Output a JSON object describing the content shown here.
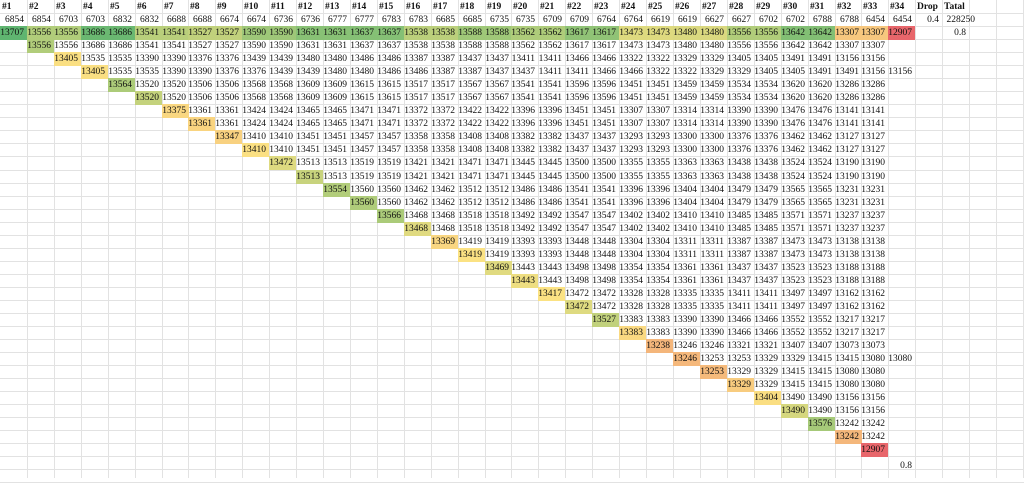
{
  "col_labels": [
    "#1",
    "#2",
    "#3",
    "#4",
    "#5",
    "#6",
    "#7",
    "#8",
    "#9",
    "#10",
    "#11",
    "#12",
    "#13",
    "#14",
    "#15",
    "#16",
    "#17",
    "#18",
    "#19",
    "#20",
    "#21",
    "#22",
    "#23",
    "#24",
    "#25",
    "#26",
    "#27",
    "#28",
    "#29",
    "#30",
    "#31",
    "#32",
    "#33",
    "#34",
    "Drop",
    "Tatal"
  ],
  "base_values": [
    6854,
    6854,
    6703,
    6703,
    6832,
    6832,
    6688,
    6688,
    6674,
    6674,
    6736,
    6736,
    6777,
    6777,
    6783,
    6783,
    6685,
    6685,
    6735,
    6735,
    6709,
    6709,
    6764,
    6764,
    6619,
    6619,
    6627,
    6627,
    6702,
    6702,
    6788,
    6788,
    6454,
    6454
  ],
  "drop_value": "0.4",
  "total_value": "228250",
  "side_value": "0.8",
  "footer_value": "0.8",
  "diagonal_values": [
    13707,
    13556,
    13405,
    13405,
    13564,
    13520,
    13375,
    13361,
    13347,
    13410,
    13472,
    13513,
    13554,
    13560,
    13566,
    13468,
    13369,
    13419,
    13469,
    13443,
    13417,
    13472,
    13527,
    13383,
    13238,
    13246,
    13253,
    13329,
    13404,
    13490,
    13576,
    13242,
    12907
  ],
  "heat_colors": {
    "low": "#e8666b",
    "mid": "#fbe283",
    "high": "#5fb570"
  },
  "rows": [
    [
      "13707",
      "13556",
      "13556",
      "13686",
      "13686",
      "13541",
      "13541",
      "13527",
      "13527",
      "13590",
      "13590",
      "13631",
      "13631",
      "13637",
      "13637",
      "13538",
      "13538",
      "13588",
      "13588",
      "13562",
      "13562",
      "13617",
      "13617",
      "13473",
      "13473",
      "13480",
      "13480",
      "13556",
      "13556",
      "13642",
      "13642",
      "13307",
      "13307",
      "12907"
    ],
    [
      "13556",
      "13556",
      "13686",
      "13686",
      "13541",
      "13541",
      "13527",
      "13527",
      "13590",
      "13590",
      "13631",
      "13631",
      "13637",
      "13637",
      "13538",
      "13538",
      "13588",
      "13588",
      "13562",
      "13562",
      "13617",
      "13617",
      "13473",
      "13473",
      "13480",
      "13480",
      "13556",
      "13556",
      "13642",
      "13642",
      "13307",
      "13307"
    ],
    [
      "13405",
      "13535",
      "13535",
      "13390",
      "13390",
      "13376",
      "13376",
      "13439",
      "13439",
      "13480",
      "13480",
      "13486",
      "13486",
      "13387",
      "13387",
      "13437",
      "13437",
      "13411",
      "13411",
      "13466",
      "13466",
      "13322",
      "13322",
      "13329",
      "13329",
      "13405",
      "13405",
      "13491",
      "13491",
      "13156",
      "13156"
    ],
    [
      "13405",
      "13535",
      "13535",
      "13390",
      "13390",
      "13376",
      "13376",
      "13439",
      "13439",
      "13480",
      "13480",
      "13486",
      "13486",
      "13387",
      "13387",
      "13437",
      "13437",
      "13411",
      "13411",
      "13466",
      "13466",
      "13322",
      "13322",
      "13329",
      "13329",
      "13405",
      "13405",
      "13491",
      "13491",
      "13156",
      "13156"
    ],
    [
      "13564",
      "13520",
      "13520",
      "13506",
      "13506",
      "13568",
      "13568",
      "13609",
      "13609",
      "13615",
      "13615",
      "13517",
      "13517",
      "13567",
      "13567",
      "13541",
      "13541",
      "13596",
      "13596",
      "13451",
      "13451",
      "13459",
      "13459",
      "13534",
      "13534",
      "13620",
      "13620",
      "13286",
      "13286"
    ],
    [
      "13520",
      "13520",
      "13506",
      "13506",
      "13568",
      "13568",
      "13609",
      "13609",
      "13615",
      "13615",
      "13517",
      "13517",
      "13567",
      "13567",
      "13541",
      "13541",
      "13596",
      "13596",
      "13451",
      "13451",
      "13459",
      "13459",
      "13534",
      "13534",
      "13620",
      "13620",
      "13286",
      "13286"
    ],
    [
      "13375",
      "13361",
      "13361",
      "13424",
      "13424",
      "13465",
      "13465",
      "13471",
      "13471",
      "13372",
      "13372",
      "13422",
      "13422",
      "13396",
      "13396",
      "13451",
      "13451",
      "13307",
      "13307",
      "13314",
      "13314",
      "13390",
      "13390",
      "13476",
      "13476",
      "13141",
      "13141"
    ],
    [
      "13361",
      "13361",
      "13424",
      "13424",
      "13465",
      "13465",
      "13471",
      "13471",
      "13372",
      "13372",
      "13422",
      "13422",
      "13396",
      "13396",
      "13451",
      "13451",
      "13307",
      "13307",
      "13314",
      "13314",
      "13390",
      "13390",
      "13476",
      "13476",
      "13141",
      "13141"
    ],
    [
      "13347",
      "13410",
      "13410",
      "13451",
      "13451",
      "13457",
      "13457",
      "13358",
      "13358",
      "13408",
      "13408",
      "13382",
      "13382",
      "13437",
      "13437",
      "13293",
      "13293",
      "13300",
      "13300",
      "13376",
      "13376",
      "13462",
      "13462",
      "13127",
      "13127"
    ],
    [
      "13410",
      "13410",
      "13451",
      "13451",
      "13457",
      "13457",
      "13358",
      "13358",
      "13408",
      "13408",
      "13382",
      "13382",
      "13437",
      "13437",
      "13293",
      "13293",
      "13300",
      "13300",
      "13376",
      "13376",
      "13462",
      "13462",
      "13127",
      "13127"
    ],
    [
      "13472",
      "13513",
      "13513",
      "13519",
      "13519",
      "13421",
      "13421",
      "13471",
      "13471",
      "13445",
      "13445",
      "13500",
      "13500",
      "13355",
      "13355",
      "13363",
      "13363",
      "13438",
      "13438",
      "13524",
      "13524",
      "13190",
      "13190"
    ],
    [
      "13513",
      "13513",
      "13519",
      "13519",
      "13421",
      "13421",
      "13471",
      "13471",
      "13445",
      "13445",
      "13500",
      "13500",
      "13355",
      "13355",
      "13363",
      "13363",
      "13438",
      "13438",
      "13524",
      "13524",
      "13190",
      "13190"
    ],
    [
      "13554",
      "13560",
      "13560",
      "13462",
      "13462",
      "13512",
      "13512",
      "13486",
      "13486",
      "13541",
      "13541",
      "13396",
      "13396",
      "13404",
      "13404",
      "13479",
      "13479",
      "13565",
      "13565",
      "13231",
      "13231"
    ],
    [
      "13560",
      "13560",
      "13462",
      "13462",
      "13512",
      "13512",
      "13486",
      "13486",
      "13541",
      "13541",
      "13396",
      "13396",
      "13404",
      "13404",
      "13479",
      "13479",
      "13565",
      "13565",
      "13231",
      "13231"
    ],
    [
      "13566",
      "13468",
      "13468",
      "13518",
      "13518",
      "13492",
      "13492",
      "13547",
      "13547",
      "13402",
      "13402",
      "13410",
      "13410",
      "13485",
      "13485",
      "13571",
      "13571",
      "13237",
      "13237"
    ],
    [
      "13468",
      "13468",
      "13518",
      "13518",
      "13492",
      "13492",
      "13547",
      "13547",
      "13402",
      "13402",
      "13410",
      "13410",
      "13485",
      "13485",
      "13571",
      "13571",
      "13237",
      "13237"
    ],
    [
      "13369",
      "13419",
      "13419",
      "13393",
      "13393",
      "13448",
      "13448",
      "13304",
      "13304",
      "13311",
      "13311",
      "13387",
      "13387",
      "13473",
      "13473",
      "13138",
      "13138"
    ],
    [
      "13419",
      "13419",
      "13393",
      "13393",
      "13448",
      "13448",
      "13304",
      "13304",
      "13311",
      "13311",
      "13387",
      "13387",
      "13473",
      "13473",
      "13138",
      "13138"
    ],
    [
      "13469",
      "13443",
      "13443",
      "13498",
      "13498",
      "13354",
      "13354",
      "13361",
      "13361",
      "13437",
      "13437",
      "13523",
      "13523",
      "13188",
      "13188"
    ],
    [
      "13443",
      "13443",
      "13498",
      "13498",
      "13354",
      "13354",
      "13361",
      "13361",
      "13437",
      "13437",
      "13523",
      "13523",
      "13188",
      "13188"
    ],
    [
      "13417",
      "13472",
      "13472",
      "13328",
      "13328",
      "13335",
      "13335",
      "13411",
      "13411",
      "13497",
      "13497",
      "13162",
      "13162"
    ],
    [
      "13472",
      "13472",
      "13328",
      "13328",
      "13335",
      "13335",
      "13411",
      "13411",
      "13497",
      "13497",
      "13162",
      "13162"
    ],
    [
      "13527",
      "13383",
      "13383",
      "13390",
      "13390",
      "13466",
      "13466",
      "13552",
      "13552",
      "13217",
      "13217"
    ],
    [
      "13383",
      "13383",
      "13390",
      "13390",
      "13466",
      "13466",
      "13552",
      "13552",
      "13217",
      "13217"
    ],
    [
      "13238",
      "13246",
      "13246",
      "13321",
      "13321",
      "13407",
      "13407",
      "13073",
      "13073"
    ],
    [
      "13246",
      "13253",
      "13253",
      "13329",
      "13329",
      "13415",
      "13415",
      "13080",
      "13080"
    ],
    [
      "13253",
      "13329",
      "13329",
      "13415",
      "13415",
      "13080",
      "13080"
    ],
    [
      "13329",
      "13329",
      "13415",
      "13415",
      "13080",
      "13080"
    ],
    [
      "13404",
      "13490",
      "13490",
      "13156",
      "13156"
    ],
    [
      "13490",
      "13490",
      "13156",
      "13156"
    ],
    [
      "13576",
      "13242",
      "13242"
    ],
    [
      "13242",
      "13242"
    ],
    [
      "12907"
    ]
  ]
}
